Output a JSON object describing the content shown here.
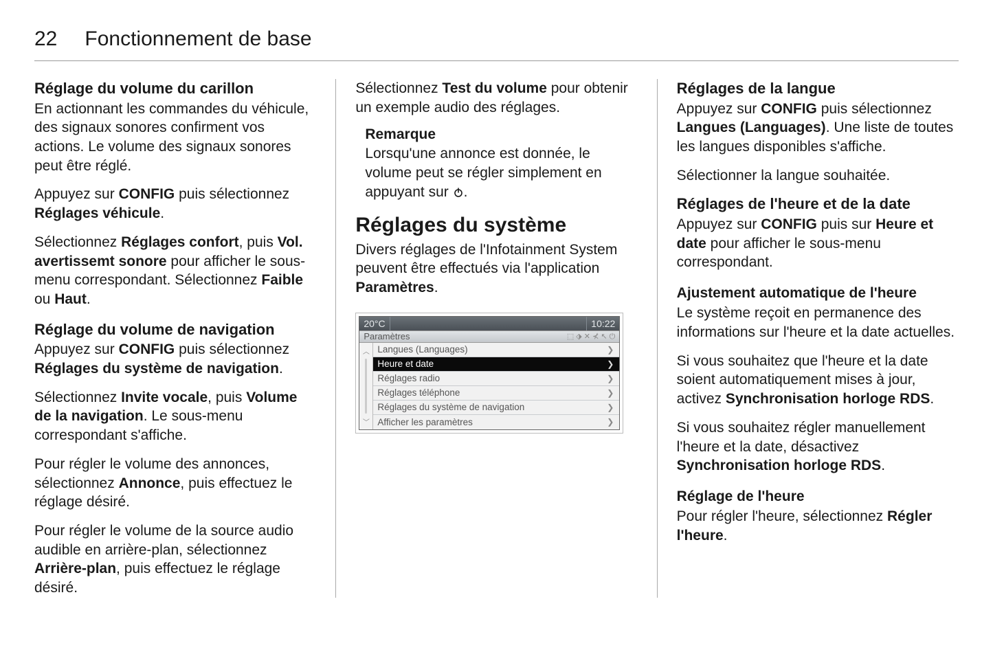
{
  "page": {
    "number": "22",
    "title": "Fonctionnement de base"
  },
  "col1": {
    "h_carillon": "Réglage du volume du carillon",
    "p_carillon1": "En actionnant les commandes du véhicule, des signaux sonores confirment vos actions. Le volume des signaux sonores peut être réglé.",
    "p_carillon2a": "Appuyez sur ",
    "p_carillon2b": "CONFIG",
    "p_carillon2c": " puis sélectionnez ",
    "p_carillon2d": "Réglages véhicule",
    "p_carillon2e": ".",
    "p_carillon3a": "Sélectionnez ",
    "p_carillon3b": "Réglages confort",
    "p_carillon3c": ", puis ",
    "p_carillon3d": "Vol. avertissemt sonore",
    "p_carillon3e": " pour afficher le sous-menu correspondant. Sélectionnez ",
    "p_carillon3f": "Faible",
    "p_carillon3g": " ou ",
    "p_carillon3h": "Haut",
    "p_carillon3i": ".",
    "h_nav": "Réglage du volume de navigation",
    "p_nav1a": "Appuyez sur ",
    "p_nav1b": "CONFIG",
    "p_nav1c": " puis sélectionnez ",
    "p_nav1d": "Réglages du système de navigation",
    "p_nav1e": ".",
    "p_nav2a": "Sélectionnez ",
    "p_nav2b": "Invite vocale",
    "p_nav2c": ", puis ",
    "p_nav2d": "Volume de la navigation",
    "p_nav2e": ". Le sous-menu correspondant s'affiche.",
    "p_nav3a": "Pour régler le volume des annonces, sélectionnez ",
    "p_nav3b": "Annonce",
    "p_nav3c": ", puis effectuez le réglage désiré.",
    "p_nav4a": "Pour régler le volume de la source audio audible en arrière-plan, sélectionnez ",
    "p_nav4b": "Arrière-plan",
    "p_nav4c": ", puis effectuez le réglage désiré."
  },
  "col2": {
    "p_test1a": "Sélectionnez ",
    "p_test1b": "Test du volume",
    "p_test1c": " pour obtenir un exemple audio des réglages.",
    "note_title": "Remarque",
    "note_body": "Lorsqu'une annonce est donnée, le volume peut se régler simplement en appuyant sur ",
    "h2_sys": "Réglages du système",
    "p_sys1a": "Divers réglages de l'Infotainment System peuvent être effectués via l'application ",
    "p_sys1b": "Paramètres",
    "p_sys1c": "."
  },
  "screenshot": {
    "temp": "20°C",
    "time": "10:22",
    "crumb": "Paramètres",
    "items": [
      {
        "label": "Langues (Languages)",
        "selected": false
      },
      {
        "label": "Heure et date",
        "selected": true
      },
      {
        "label": "Réglages radio",
        "selected": false
      },
      {
        "label": "Réglages téléphone",
        "selected": false
      },
      {
        "label": "Réglages du système de navigation",
        "selected": false
      },
      {
        "label": "Afficher les paramètres",
        "selected": false
      }
    ],
    "scroll_up": "︿",
    "scroll_down": "﹀",
    "chevron": "❯",
    "status_glyphs": "⬚ ⬗ ✕ ⊀ ↖ ⏻",
    "colors": {
      "topbar_grad_top": "#6a7177",
      "topbar_grad_bot": "#4a5056",
      "crumb_grad_top": "#e1e4e7",
      "crumb_grad_bot": "#c4c8cc",
      "item_bg": "#f1f1f1",
      "item_selected_bg": "#0a0a0a",
      "item_divider": "#c9cccf"
    }
  },
  "col3": {
    "h_lang": "Réglages de la langue",
    "p_lang1a": "Appuyez sur ",
    "p_lang1b": "CONFIG",
    "p_lang1c": " puis sélectionnez ",
    "p_lang1d": "Langues (Languages)",
    "p_lang1e": ". Une liste de toutes les langues disponibles s'affiche.",
    "p_lang2": "Sélectionner la langue souhaitée.",
    "h_time": "Réglages de l'heure et de la date",
    "p_time1a": "Appuyez sur ",
    "p_time1b": "CONFIG",
    "p_time1c": " puis sur ",
    "p_time1d": "Heure et date",
    "p_time1e": " pour afficher le sous-menu correspondant.",
    "h_auto": "Ajustement automatique de l'heure",
    "p_auto1": "Le système reçoit en permanence des informations sur l'heure et la date actuelles.",
    "p_auto2a": "Si vous souhaitez que l'heure et la date soient automatiquement mises à jour, activez ",
    "p_auto2b": "Synchronisation horloge RDS",
    "p_auto2c": ".",
    "p_auto3a": "Si vous souhaitez régler manuellement l'heure et la date, désactivez ",
    "p_auto3b": "Synchronisation horloge RDS",
    "p_auto3c": ".",
    "h_set": "Réglage de l'heure",
    "p_set1a": "Pour régler l'heure, sélectionnez ",
    "p_set1b": "Régler l'heure",
    "p_set1c": "."
  }
}
